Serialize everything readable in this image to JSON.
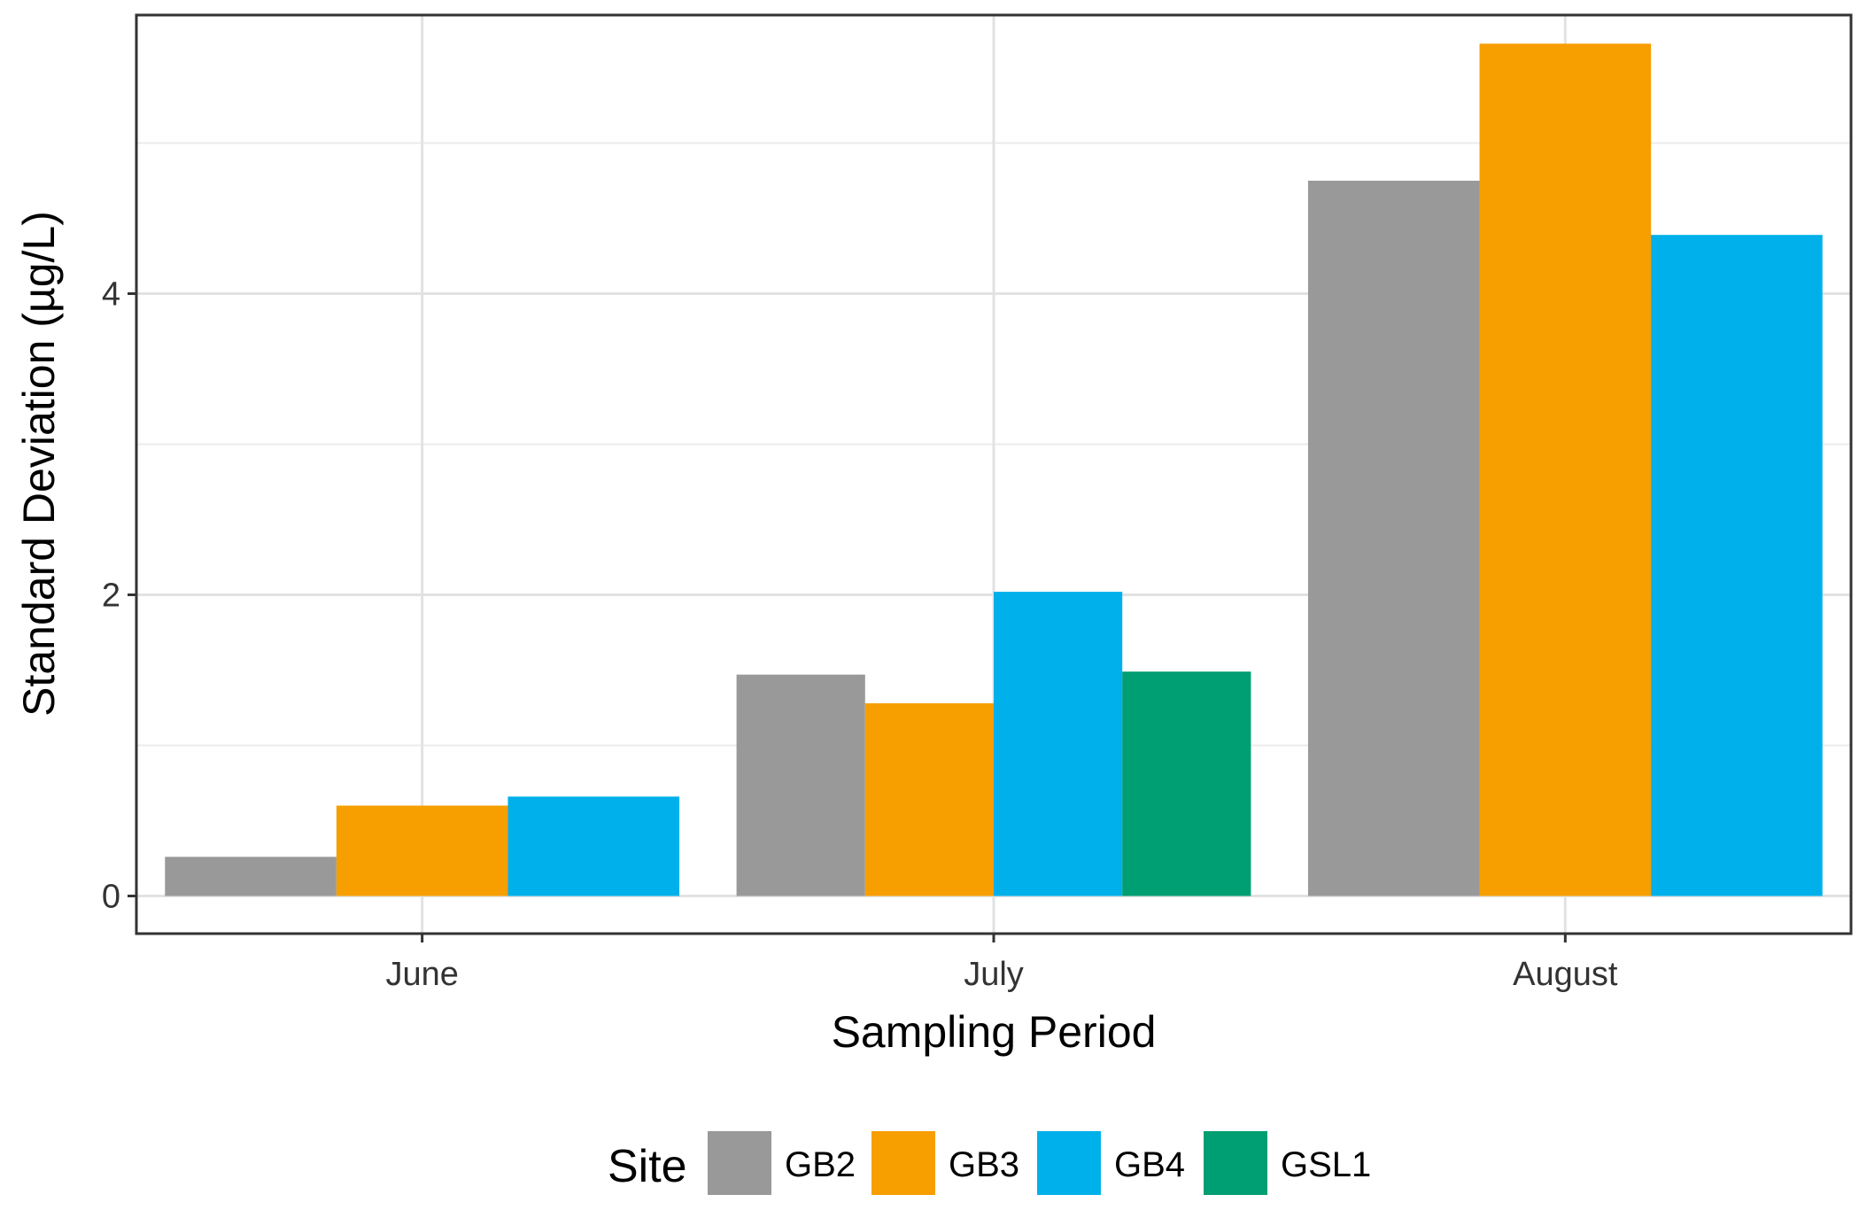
{
  "chart_data": {
    "type": "bar",
    "title": "",
    "xlabel": "Sampling Period",
    "ylabel": "Standard Deviation (µg/L)",
    "categories": [
      "June",
      "July",
      "August"
    ],
    "ylim": [
      -0.25,
      5.85
    ],
    "yticks": [
      0,
      2,
      4
    ],
    "yticks_labels": [
      "0",
      "2",
      "4"
    ],
    "grid": true,
    "legend_title": "Site",
    "legend_position": "bottom",
    "series": [
      {
        "name": "GB2",
        "color": "#999999",
        "values": [
          0.26,
          1.47,
          4.75
        ]
      },
      {
        "name": "GB3",
        "color": "#F79E00",
        "values": [
          0.6,
          1.28,
          5.66
        ]
      },
      {
        "name": "GB4",
        "color": "#00B0EA",
        "values": [
          0.66,
          2.02,
          4.39
        ]
      },
      {
        "name": "GSL1",
        "color": "#009E73",
        "values": [
          null,
          1.49,
          null
        ]
      }
    ]
  }
}
